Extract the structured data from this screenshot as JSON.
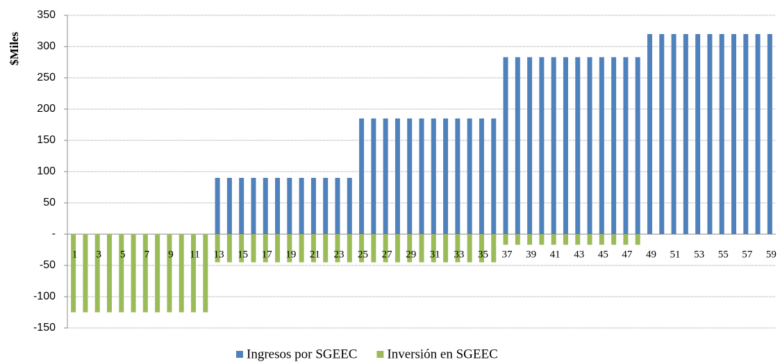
{
  "chart_data": {
    "type": "bar",
    "y_label": "$Miles",
    "categories": [
      1,
      null,
      3,
      null,
      5,
      null,
      7,
      null,
      9,
      null,
      11,
      null,
      13,
      null,
      15,
      null,
      17,
      null,
      19,
      null,
      21,
      null,
      23,
      null,
      25,
      null,
      27,
      null,
      29,
      null,
      31,
      null,
      33,
      null,
      35,
      null,
      37,
      null,
      39,
      null,
      41,
      null,
      43,
      null,
      45,
      null,
      47,
      null,
      49,
      null,
      51,
      null,
      53,
      null,
      55,
      null,
      57,
      null,
      59
    ],
    "series": [
      {
        "name": "Ingresos por SGEEC",
        "color": "#4f81bd",
        "values": [
          0,
          0,
          0,
          0,
          0,
          0,
          0,
          0,
          0,
          0,
          0,
          0,
          90,
          90,
          90,
          90,
          90,
          90,
          90,
          90,
          90,
          90,
          90,
          90,
          185,
          185,
          185,
          185,
          185,
          185,
          185,
          185,
          185,
          185,
          185,
          185,
          283,
          283,
          283,
          283,
          283,
          283,
          283,
          283,
          283,
          283,
          283,
          283,
          320,
          320,
          320,
          320,
          320,
          320,
          320,
          320,
          320,
          320,
          320
        ]
      },
      {
        "name": "Inversión en SGEEC",
        "color": "#9bbb59",
        "values": [
          -125,
          -125,
          -125,
          -125,
          -125,
          -125,
          -125,
          -125,
          -125,
          -125,
          -125,
          -125,
          -45,
          -45,
          -45,
          -45,
          -45,
          -45,
          -45,
          -45,
          -45,
          -45,
          -45,
          -45,
          -45,
          -45,
          -45,
          -45,
          -45,
          -45,
          -45,
          -45,
          -45,
          -45,
          -45,
          -45,
          -17,
          -17,
          -17,
          -17,
          -17,
          -17,
          -17,
          -17,
          -17,
          -17,
          -17,
          -17,
          0,
          0,
          0,
          0,
          0,
          0,
          0,
          0,
          0,
          0,
          0
        ]
      }
    ],
    "ylim": [
      -150,
      350
    ],
    "yticks": [
      -150,
      -100,
      -50,
      {
        "value": 0,
        "label": "-"
      },
      50,
      100,
      150,
      200,
      250,
      300,
      350
    ],
    "grid": true,
    "legend": "bottom"
  }
}
